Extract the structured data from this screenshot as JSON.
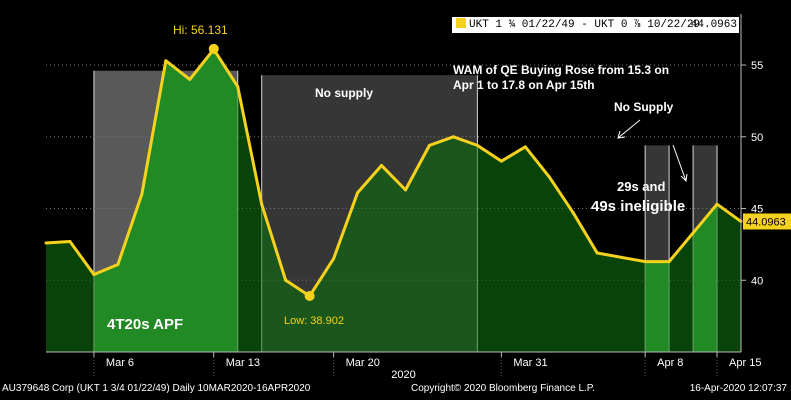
{
  "legend": {
    "label": "UKT 1 ¾ 01/22/49 - UKT 0 ⅞ 10/22/29",
    "last_value": "44.0963",
    "swatch_color": "#f5d21e"
  },
  "annotations": {
    "hi_label": "Hi: 56.131",
    "low_label": "Low: 38.902",
    "no_supply_1": "No supply",
    "no_supply_2": "No Supply",
    "wam_line1": "WAM of QE Buying Rose from 15.3 on",
    "wam_line2": "Apr 1 to 17.8 on Apr 15th",
    "ineligible_line1": "29s and",
    "ineligible_line2": "49s ineligible",
    "apf_label": "4T20s APF"
  },
  "footer": {
    "left": "AU379648 Corp (UKT 1 3/4 01/22/49)  Daily 10MAR2020-16APR2020",
    "center": "Copyright© 2020 Bloomberg Finance L.P.",
    "right": "16-Apr-2020 12:07:37"
  },
  "chart_data": {
    "type": "area",
    "title": "",
    "xlabel": "2020",
    "ylabel": "",
    "ylim": [
      35,
      58
    ],
    "yticks": [
      40,
      45,
      50,
      55
    ],
    "ytick_labels": [
      "40",
      "45",
      "50",
      "55"
    ],
    "x_tick_labels": [
      "Mar 6",
      "Mar 13",
      "Mar 20",
      "Mar 31",
      "Apr 8",
      "Apr 15"
    ],
    "x_tick_dates": [
      "2020-03-06",
      "2020-03-13",
      "2020-03-20",
      "2020-03-31",
      "2020-04-08",
      "2020-04-15"
    ],
    "x_year_label": "2020",
    "series": [
      {
        "name": "UKT 1 ¾ 01/22/49 - UKT 0 ⅞ 10/22/29",
        "color": "#f5d21e",
        "fill": "#0f7a12",
        "x": [
          "2020-03-04",
          "2020-03-05",
          "2020-03-06",
          "2020-03-09",
          "2020-03-10",
          "2020-03-11",
          "2020-03-12",
          "2020-03-13",
          "2020-03-16",
          "2020-03-17",
          "2020-03-18",
          "2020-03-19",
          "2020-03-20",
          "2020-03-23",
          "2020-03-24",
          "2020-03-25",
          "2020-03-26",
          "2020-03-27",
          "2020-03-30",
          "2020-03-31",
          "2020-04-01",
          "2020-04-02",
          "2020-04-03",
          "2020-04-06",
          "2020-04-07",
          "2020-04-08",
          "2020-04-09",
          "2020-04-14",
          "2020-04-15",
          "2020-04-16"
        ],
        "y": [
          42.6,
          42.7,
          40.4,
          41.1,
          46.0,
          55.3,
          54.0,
          56.1,
          53.5,
          45.3,
          40.0,
          38.9,
          41.5,
          46.1,
          48.0,
          46.3,
          49.4,
          50.0,
          49.4,
          48.3,
          49.3,
          47.2,
          44.7,
          41.9,
          41.6,
          41.3,
          41.3,
          43.3,
          45.3,
          44.1
        ]
      }
    ],
    "highlights": [
      {
        "from": "2020-03-06",
        "to": "2020-03-16",
        "color": "#3a9d3a",
        "shade_color": "#595959",
        "shade_top_y": 54.6
      },
      {
        "from": "2020-03-17",
        "to": "2020-03-30",
        "color": "#2a2a2a",
        "shade_color": "#363636",
        "shade_top_y": 54.3
      },
      {
        "from": "2020-04-08",
        "to": "2020-04-09",
        "color": "#3a9d3a",
        "shade_color": "#363636",
        "shade_top_y": 49.4
      },
      {
        "from": "2020-04-14",
        "to": "2020-04-15",
        "color": "#3a9d3a",
        "shade_color": "#363636",
        "shade_top_y": 49.4
      }
    ],
    "hi": {
      "date": "2020-03-13",
      "value": 56.131
    },
    "low": {
      "date": "2020-03-19",
      "value": 38.902
    },
    "last": 44.0963
  }
}
